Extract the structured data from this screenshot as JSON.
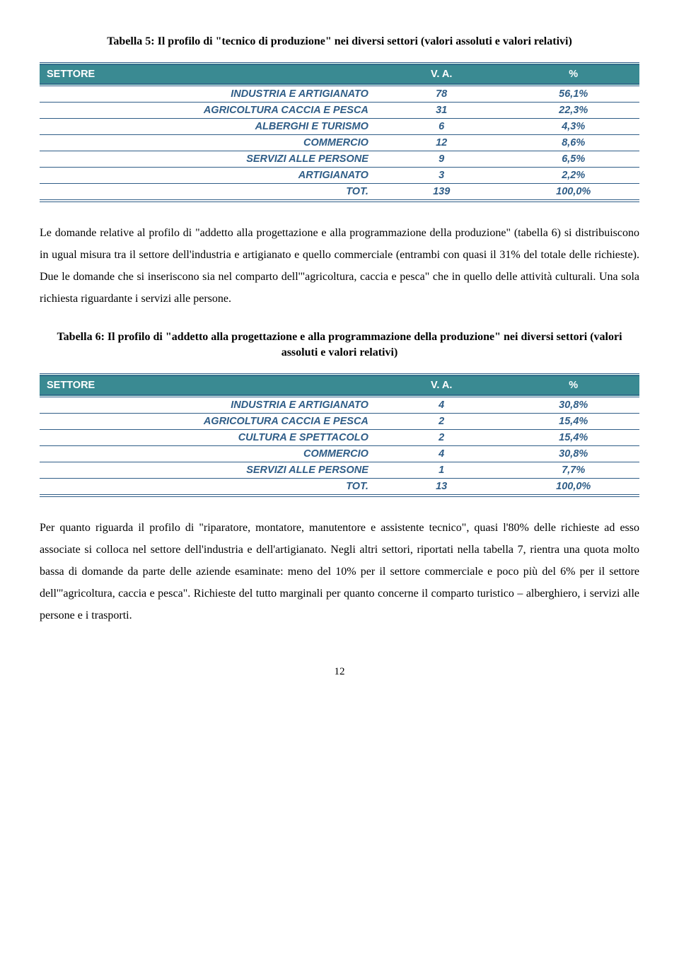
{
  "colors": {
    "header_bg": "#3a8a92",
    "header_text": "#ffffff",
    "cell_text": "#2f5d87",
    "rule": "#2f5d87",
    "page_bg": "#ffffff",
    "body_text": "#000000"
  },
  "typography": {
    "body_font": "Times New Roman",
    "table_font": "Arial",
    "caption_fontsize_pt": 12,
    "body_fontsize_pt": 12,
    "table_fontsize_pt": 11,
    "body_line_height": 1.95
  },
  "table5": {
    "type": "table",
    "caption": "Tabella 5: Il profilo di \"tecnico di produzione\" nei diversi settori (valori assoluti e valori relativi)",
    "columns": [
      "SETTORE",
      "V. A.",
      "%"
    ],
    "column_widths_pct": [
      56,
      22,
      22
    ],
    "rows": [
      {
        "label": "INDUSTRIA E ARTIGIANATO",
        "va": "78",
        "pct": "56,1%"
      },
      {
        "label": "AGRICOLTURA  CACCIA E PESCA",
        "va": "31",
        "pct": "22,3%"
      },
      {
        "label": "ALBERGHI E TURISMO",
        "va": "6",
        "pct": "4,3%"
      },
      {
        "label": "COMMERCIO",
        "va": "12",
        "pct": "8,6%"
      },
      {
        "label": "SERVIZI ALLE PERSONE",
        "va": "9",
        "pct": "6,5%"
      },
      {
        "label": "ARTIGIANATO",
        "va": "3",
        "pct": "2,2%"
      },
      {
        "label": "TOT.",
        "va": "139",
        "pct": "100,0%"
      }
    ]
  },
  "paragraph1": "Le domande relative al profilo di \"addetto alla progettazione e alla programmazione della produzione\" (tabella 6) si distribuiscono in ugual misura tra il settore dell'industria e artigianato e quello commerciale (entrambi con quasi il 31% del totale delle richieste). Due le domande che si inseriscono sia nel comparto dell'\"agricoltura, caccia e pesca\" che in quello delle attività culturali. Una sola richiesta riguardante i servizi alle persone.",
  "table6": {
    "type": "table",
    "caption": "Tabella 6: Il profilo di \"addetto alla progettazione e alla programmazione della produzione\" nei diversi settori (valori assoluti e valori relativi)",
    "columns": [
      "SETTORE",
      "V. A.",
      "%"
    ],
    "column_widths_pct": [
      56,
      22,
      22
    ],
    "rows": [
      {
        "label": "INDUSTRIA E ARTIGIANATO",
        "va": "4",
        "pct": "30,8%"
      },
      {
        "label": "AGRICOLTURA CACCIA E PESCA",
        "va": "2",
        "pct": "15,4%"
      },
      {
        "label": "CULTURA E SPETTACOLO",
        "va": "2",
        "pct": "15,4%"
      },
      {
        "label": "COMMERCIO",
        "va": "4",
        "pct": "30,8%"
      },
      {
        "label": "SERVIZI ALLE PERSONE",
        "va": "1",
        "pct": "7,7%"
      },
      {
        "label": "TOT.",
        "va": "13",
        "pct": "100,0%"
      }
    ]
  },
  "paragraph2": "Per quanto riguarda il profilo di \"riparatore, montatore, manutentore e assistente tecnico\", quasi l'80% delle richieste ad esso associate si colloca nel settore dell'industria e dell'artigianato. Negli altri settori, riportati nella tabella 7, rientra una quota molto bassa di domande da parte delle aziende esaminate: meno del 10% per il settore commerciale e poco più del 6% per il settore dell'\"agricoltura, caccia e pesca\". Richieste del tutto marginali per quanto concerne il comparto turistico – alberghiero, i servizi alle persone e i trasporti.",
  "page_number": "12"
}
